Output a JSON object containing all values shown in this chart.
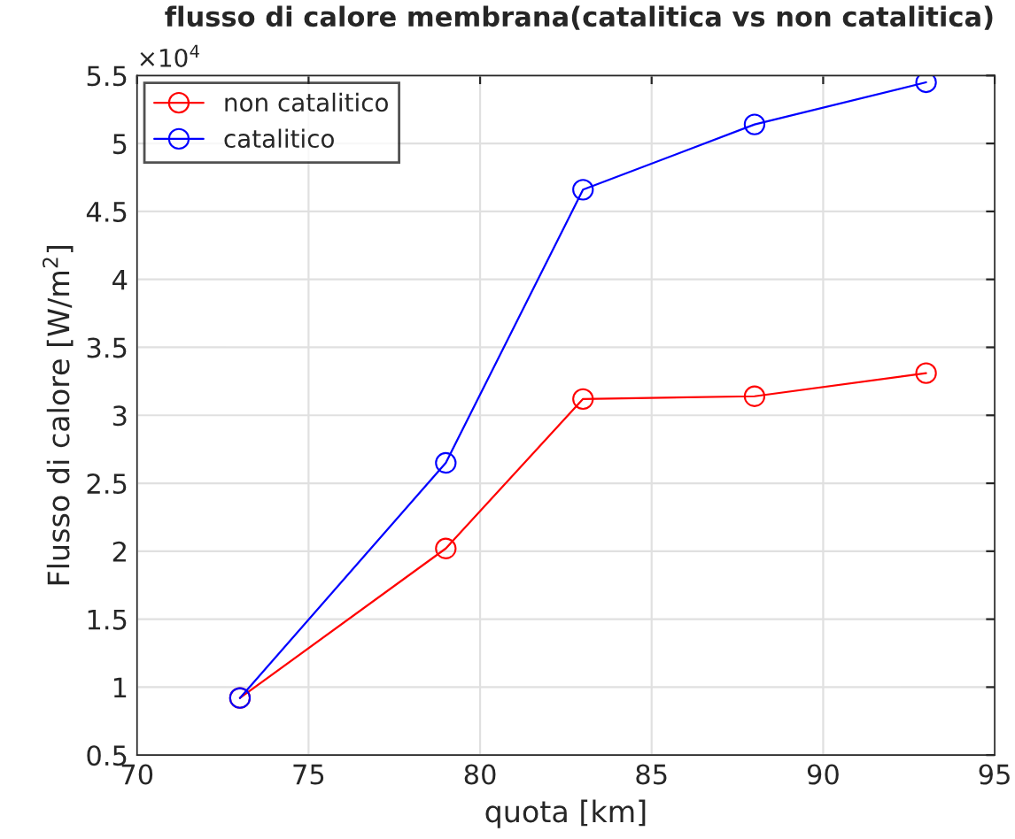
{
  "chart_data": {
    "type": "line",
    "title": "flusso di calore membrana(catalitica vs non catalitica)",
    "xlabel": "quota [km]",
    "ylabel": "Flusso di calore [W/m$^{2}$]",
    "annotations": [
      "×10$^{4}$"
    ],
    "x": [
      73,
      79,
      83,
      88,
      93
    ],
    "series": [
      {
        "name": "non catalitico",
        "color": "#ff0000",
        "values": [
          0.92,
          2.02,
          3.12,
          3.14,
          3.31
        ]
      },
      {
        "name": "catalitico",
        "color": "#0000ff",
        "values": [
          0.92,
          2.65,
          4.66,
          5.14,
          5.45
        ]
      }
    ],
    "xlim": [
      70,
      95
    ],
    "xticks": [
      70,
      75,
      80,
      85,
      90,
      95
    ],
    "ylim": [
      0.5,
      5.5
    ],
    "yticks": [
      0.5,
      1,
      1.5,
      2,
      2.5,
      3,
      3.5,
      4,
      4.5,
      5,
      5.5
    ],
    "grid": true,
    "legend": "top left",
    "marker": "circle",
    "line_style": "solid"
  }
}
